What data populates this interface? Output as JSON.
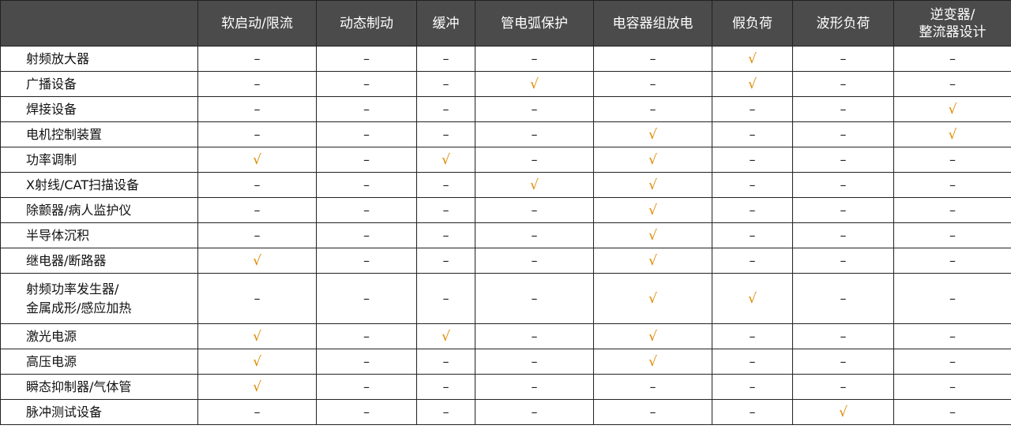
{
  "table": {
    "headers": [
      "",
      "软启动/限流",
      "动态制动",
      "缓冲",
      "管电弧保护",
      "电容器组放电",
      "假负荷",
      "波形负荷",
      "逆变器/\n整流器设计"
    ],
    "check_color": "#e08a00",
    "header_bg": "#4b4b4b",
    "rows": [
      {
        "name": "射频放大器",
        "cells": [
          "–",
          "–",
          "–",
          "–",
          "–",
          "√",
          "–",
          "–"
        ]
      },
      {
        "name": "广播设备",
        "cells": [
          "–",
          "–",
          "–",
          "√",
          "–",
          "√",
          "–",
          "–"
        ]
      },
      {
        "name": "焊接设备",
        "cells": [
          "–",
          "–",
          "–",
          "–",
          "–",
          "–",
          "–",
          "√"
        ]
      },
      {
        "name": "电机控制装置",
        "cells": [
          "–",
          "–",
          "–",
          "–",
          "√",
          "–",
          "–",
          "√"
        ]
      },
      {
        "name": "功率调制",
        "cells": [
          "√",
          "–",
          "√",
          "–",
          "√",
          "–",
          "–",
          "–"
        ]
      },
      {
        "name": "X射线/CAT扫描设备",
        "cells": [
          "–",
          "–",
          "–",
          "√",
          "√",
          "–",
          "–",
          "–"
        ]
      },
      {
        "name": "除颤器/病人监护仪",
        "cells": [
          "–",
          "–",
          "–",
          "–",
          "√",
          "–",
          "–",
          "–"
        ]
      },
      {
        "name": "半导体沉积",
        "cells": [
          "–",
          "–",
          "–",
          "–",
          "√",
          "–",
          "–",
          "–"
        ]
      },
      {
        "name": "继电器/断路器",
        "cells": [
          "√",
          "–",
          "–",
          "–",
          "√",
          "–",
          "–",
          "–"
        ]
      },
      {
        "name": "射频功率发生器/\n金属成形/感应加热",
        "cells": [
          "–",
          "–",
          "–",
          "–",
          "√",
          "√",
          "–",
          "–"
        ]
      },
      {
        "name": "激光电源",
        "cells": [
          "√",
          "–",
          "√",
          "–",
          "√",
          "–",
          "–",
          "–"
        ]
      },
      {
        "name": "高压电源",
        "cells": [
          "√",
          "–",
          "–",
          "–",
          "√",
          "–",
          "–",
          "–"
        ]
      },
      {
        "name": "瞬态抑制器/气体管",
        "cells": [
          "√",
          "–",
          "–",
          "–",
          "–",
          "–",
          "–",
          "–"
        ]
      },
      {
        "name": "脉冲测试设备",
        "cells": [
          "–",
          "–",
          "–",
          "–",
          "–",
          "–",
          "√",
          "–"
        ]
      }
    ]
  }
}
